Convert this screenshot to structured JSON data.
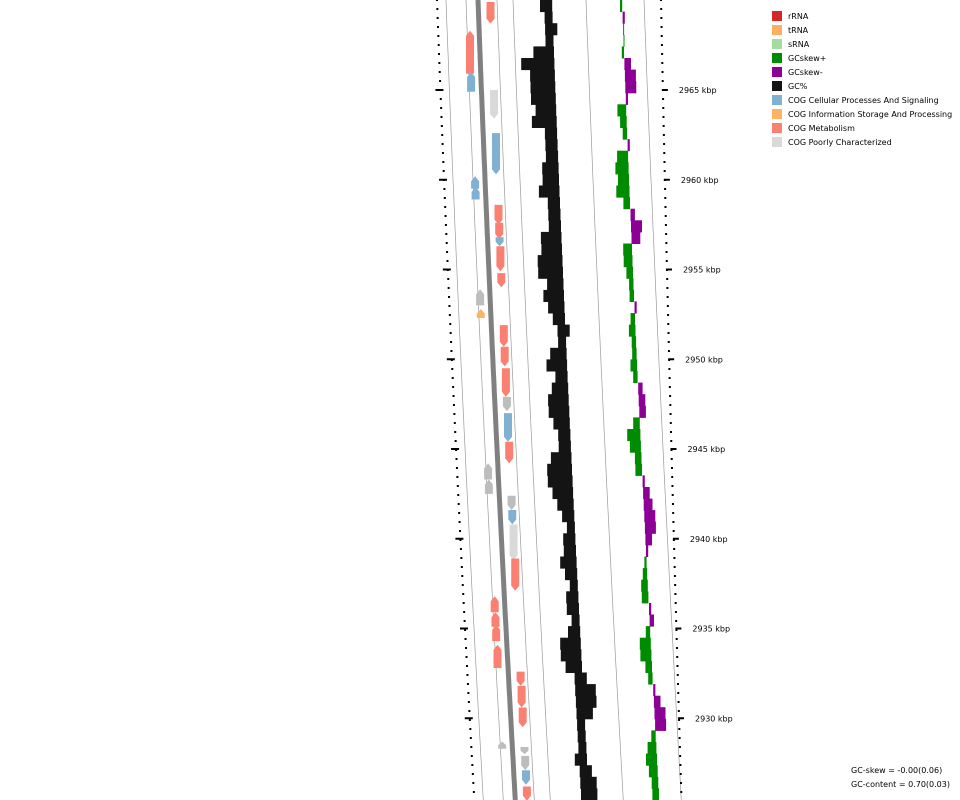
{
  "legend": [
    {
      "label": "rRNA",
      "color": "#d62728"
    },
    {
      "label": "tRNA",
      "color": "#fdae61"
    },
    {
      "label": "sRNA",
      "color": "#a6dba0"
    },
    {
      "label": "GCskew+",
      "color": "#008c00"
    },
    {
      "label": "GCskew-",
      "color": "#8c0096"
    },
    {
      "label": "GC%",
      "color": "#141414"
    },
    {
      "label": "COG Cellular Processes And Signaling",
      "color": "#80b1d3"
    },
    {
      "label": "COG Information Storage And Processing",
      "color": "#fdb462"
    },
    {
      "label": "COG Metabolism",
      "color": "#fb8072"
    },
    {
      "label": "COG Poorly Characterized",
      "color": "#d9d9d9"
    }
  ],
  "stats": {
    "gc_skew": "GC-skew = -0.00(0.06)",
    "gc_content": "GC-content = 0.70(0.03)"
  },
  "chart_data": {
    "type": "genome-map",
    "position_unit": "kbp",
    "ticks": [
      {
        "label": "2965 kbp",
        "kbp": 2965
      },
      {
        "label": "2960 kbp",
        "kbp": 2960
      },
      {
        "label": "2955 kbp",
        "kbp": 2955
      },
      {
        "label": "2950 kbp",
        "kbp": 2950
      },
      {
        "label": "2945 kbp",
        "kbp": 2945
      },
      {
        "label": "2940 kbp",
        "kbp": 2940
      },
      {
        "label": "2935 kbp",
        "kbp": 2935
      },
      {
        "label": "2930 kbp",
        "kbp": 2930
      }
    ],
    "features": [
      {
        "strand": "+",
        "cog": "COG Metabolism",
        "start": 2968.7,
        "end": 2969.9,
        "dir": "down"
      },
      {
        "strand": "-",
        "cog": "COG Metabolism",
        "start": 2965.9,
        "end": 2968.3,
        "dir": "up"
      },
      {
        "strand": "-",
        "cog": "COG Cellular Processes And Signaling",
        "start": 2964.9,
        "end": 2966.0,
        "dir": "up"
      },
      {
        "strand": "+",
        "cog": "COG Poorly Characterized",
        "start": 2963.4,
        "end": 2965.0,
        "dir": "down"
      },
      {
        "strand": "+",
        "cog": "COG Cellular Processes And Signaling",
        "start": 2960.3,
        "end": 2962.6,
        "dir": "down"
      },
      {
        "strand": "-",
        "cog": "COG Cellular Processes And Signaling",
        "start": 2959.5,
        "end": 2960.2,
        "dir": "up"
      },
      {
        "strand": "-",
        "cog": "COG Cellular Processes And Signaling",
        "start": 2958.9,
        "end": 2959.6,
        "dir": "up"
      },
      {
        "strand": "+",
        "cog": "COG Metabolism",
        "start": 2957.5,
        "end": 2958.6,
        "dir": "down"
      },
      {
        "strand": "+",
        "cog": "COG Metabolism",
        "start": 2956.7,
        "end": 2957.6,
        "dir": "down"
      },
      {
        "strand": "+",
        "cog": "COG Cellular Processes And Signaling",
        "start": 2956.3,
        "end": 2956.8,
        "dir": "down"
      },
      {
        "strand": "+",
        "cog": "COG Metabolism",
        "start": 2954.9,
        "end": 2956.3,
        "dir": "down"
      },
      {
        "strand": "+",
        "cog": "COG Metabolism",
        "start": 2954.0,
        "end": 2954.8,
        "dir": "down"
      },
      {
        "strand": "-",
        "cog": "COG Poorly Characterized",
        "start": 2953.0,
        "end": 2953.9,
        "dir": "up"
      },
      {
        "strand": "-",
        "cog": "COG Information Storage And Processing",
        "start": 2952.3,
        "end": 2952.8,
        "dir": "up"
      },
      {
        "strand": "+",
        "cog": "COG Metabolism",
        "start": 2950.7,
        "end": 2951.9,
        "dir": "down"
      },
      {
        "strand": "+",
        "cog": "COG Metabolism",
        "start": 2949.6,
        "end": 2950.7,
        "dir": "down"
      },
      {
        "strand": "+",
        "cog": "COG Metabolism",
        "start": 2947.9,
        "end": 2949.5,
        "dir": "down"
      },
      {
        "strand": "+",
        "cog": "COG Poorly Characterized",
        "start": 2947.1,
        "end": 2947.9,
        "dir": "down"
      },
      {
        "strand": "+",
        "cog": "COG Cellular Processes And Signaling",
        "start": 2945.4,
        "end": 2947.0,
        "dir": "down"
      },
      {
        "strand": "+",
        "cog": "COG Metabolism",
        "start": 2944.2,
        "end": 2945.4,
        "dir": "down"
      },
      {
        "strand": "-",
        "cog": "COG Poorly Characterized",
        "start": 2943.3,
        "end": 2944.2,
        "dir": "up"
      },
      {
        "strand": "-",
        "cog": "COG Poorly Characterized",
        "start": 2942.5,
        "end": 2943.3,
        "dir": "up"
      },
      {
        "strand": "+",
        "cog": "COG Poorly Characterized",
        "start": 2941.6,
        "end": 2942.4,
        "dir": "down"
      },
      {
        "strand": "+",
        "cog": "COG Cellular Processes And Signaling",
        "start": 2940.8,
        "end": 2941.6,
        "dir": "down"
      },
      {
        "strand": "+",
        "cog": "COG Poorly Characterized",
        "start": 2938.8,
        "end": 2940.8,
        "dir": "down"
      },
      {
        "strand": "+",
        "cog": "COG Metabolism",
        "start": 2937.1,
        "end": 2938.9,
        "dir": "down"
      },
      {
        "strand": "-",
        "cog": "COG Metabolism",
        "start": 2935.9,
        "end": 2936.8,
        "dir": "up"
      },
      {
        "strand": "-",
        "cog": "COG Metabolism",
        "start": 2935.1,
        "end": 2935.9,
        "dir": "up"
      },
      {
        "strand": "-",
        "cog": "COG Metabolism",
        "start": 2934.3,
        "end": 2935.2,
        "dir": "up"
      },
      {
        "strand": "-",
        "cog": "COG Metabolism",
        "start": 2932.8,
        "end": 2934.1,
        "dir": "up"
      },
      {
        "strand": "+",
        "cog": "COG Metabolism",
        "start": 2931.8,
        "end": 2932.6,
        "dir": "down"
      },
      {
        "strand": "+",
        "cog": "COG Metabolism",
        "start": 2930.6,
        "end": 2931.8,
        "dir": "down"
      },
      {
        "strand": "+",
        "cog": "COG Metabolism",
        "start": 2929.5,
        "end": 2930.6,
        "dir": "down"
      },
      {
        "strand": "-",
        "cog": "COG Poorly Characterized",
        "start": 2928.3,
        "end": 2928.7,
        "dir": "up"
      },
      {
        "strand": "+",
        "cog": "COG Poorly Characterized",
        "start": 2928.0,
        "end": 2928.4,
        "dir": "down"
      },
      {
        "strand": "+",
        "cog": "COG Poorly Characterized",
        "start": 2927.1,
        "end": 2927.9,
        "dir": "down"
      },
      {
        "strand": "+",
        "cog": "COG Cellular Processes And Signaling",
        "start": 2926.3,
        "end": 2927.1,
        "dir": "down"
      },
      {
        "strand": "+",
        "cog": "COG Metabolism",
        "start": 2925.4,
        "end": 2926.2,
        "dir": "down"
      }
    ],
    "gc_content": [
      0.69,
      0.7,
      0.71,
      0.7,
      0.67,
      0.64,
      0.66,
      0.66,
      0.66,
      0.67,
      0.66,
      0.69,
      0.69,
      0.69,
      0.68,
      0.68,
      0.67,
      0.69,
      0.69,
      0.69,
      0.67,
      0.67,
      0.66,
      0.66,
      0.68,
      0.67,
      0.68,
      0.69,
      0.71,
      0.7,
      0.68,
      0.67,
      0.69,
      0.68,
      0.67,
      0.67,
      0.68,
      0.69,
      0.69,
      0.67,
      0.66,
      0.66,
      0.67,
      0.68,
      0.69,
      0.7,
      0.69,
      0.69,
      0.68,
      0.69,
      0.7,
      0.69,
      0.69,
      0.7,
      0.69,
      0.67,
      0.67,
      0.68,
      0.71,
      0.73,
      0.73,
      0.72,
      0.7,
      0.7,
      0.7,
      0.69,
      0.71,
      0.72,
      0.72
    ],
    "gc_skew": [
      0.01,
      -0.01,
      0.0,
      0.0,
      0.01,
      -0.03,
      -0.05,
      -0.05,
      -0.01,
      0.04,
      0.03,
      0.02,
      -0.01,
      0.05,
      0.06,
      0.05,
      0.06,
      0.03,
      -0.02,
      -0.05,
      -0.04,
      0.04,
      0.04,
      0.03,
      0.02,
      0.02,
      -0.01,
      0.02,
      0.03,
      0.02,
      0.02,
      0.03,
      0.02,
      -0.02,
      -0.03,
      -0.03,
      0.03,
      0.06,
      0.05,
      0.03,
      0.03,
      -0.01,
      -0.03,
      -0.04,
      -0.05,
      -0.05,
      -0.03,
      -0.01,
      0.01,
      0.02,
      0.03,
      0.03,
      -0.01,
      -0.02,
      0.02,
      0.05,
      0.05,
      0.03,
      0.02,
      -0.01,
      -0.03,
      -0.05,
      -0.05,
      0.02,
      0.04,
      0.05,
      0.04,
      0.03,
      0.03
    ]
  }
}
